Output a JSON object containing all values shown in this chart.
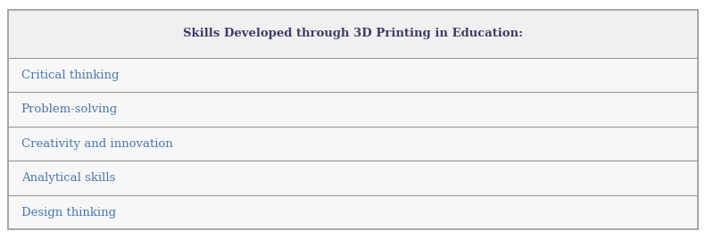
{
  "title": "Skills Developed through 3D Printing in Education:",
  "title_color": "#3d3d6b",
  "title_fontsize": 9.5,
  "title_bold": true,
  "items": [
    "Critical thinking",
    "Problem-solving",
    "Creativity and innovation",
    "Analytical skills",
    "Design thinking"
  ],
  "item_color": "#4a7ab5",
  "item_fontsize": 9.5,
  "header_bg": "#f0f0f0",
  "row_bg": "#f7f7f7",
  "border_color": "#999999",
  "outer_bg": "#ffffff",
  "margin_color": "#ffffff",
  "figsize": [
    7.91,
    2.68
  ],
  "dpi": 100
}
